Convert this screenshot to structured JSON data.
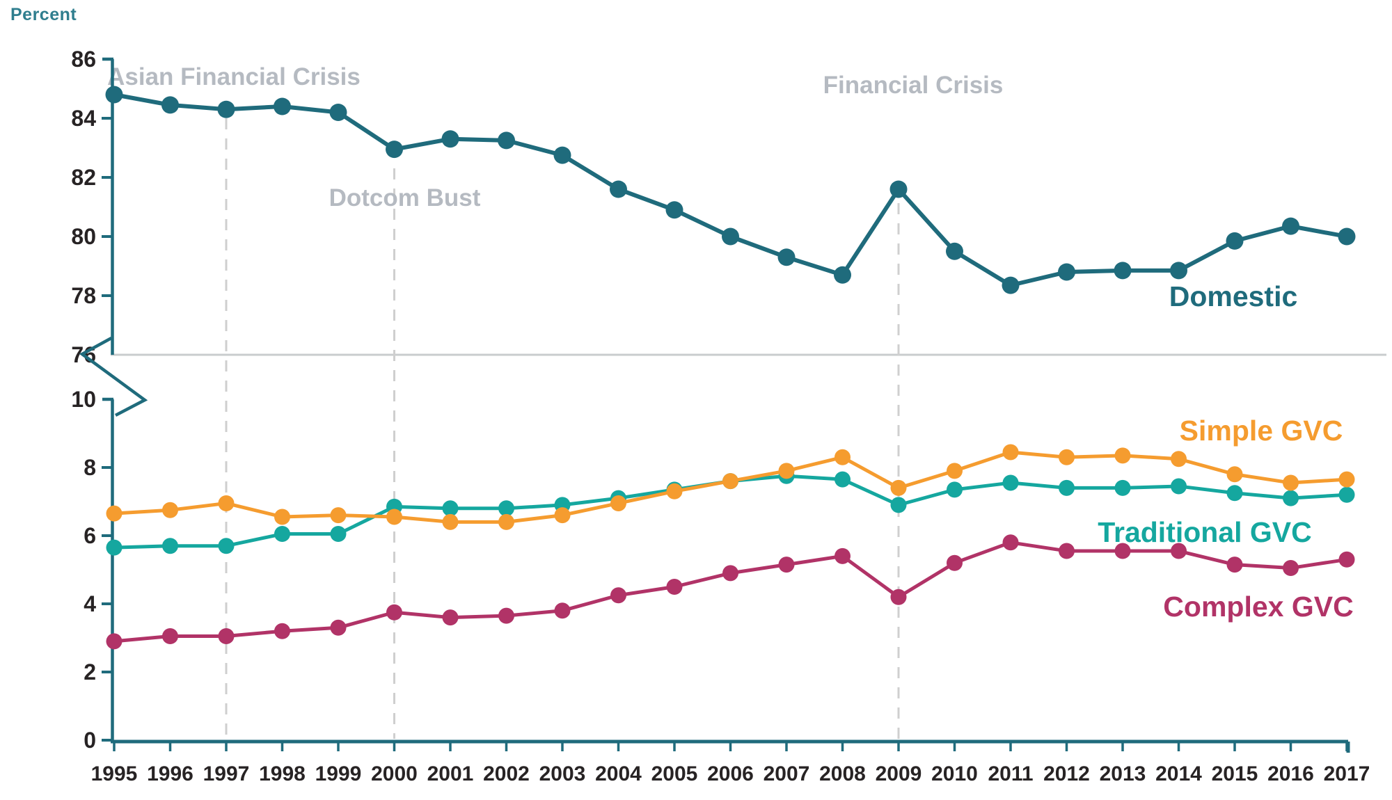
{
  "figure": {
    "unit_label": "Percent",
    "background": "#ffffff",
    "axis_color": "#1F6B7C",
    "tick_text_color": "#272324",
    "annotation_color": "#B5BAC1",
    "dashed_line_color": "#CFCFCF",
    "separator_color": "#C9CCCE"
  },
  "chart_data": {
    "type": "line",
    "title": "",
    "ylabel": "Percent",
    "xlabel": "",
    "grid": false,
    "legend": "inline-series-labels",
    "broken_y_axis": {
      "top_panel_ylim": [
        76,
        86
      ],
      "top_ticks": [
        86,
        84,
        82,
        80,
        78,
        76
      ],
      "bottom_panel_ylim": [
        0,
        10
      ],
      "bottom_ticks": [
        10,
        8,
        6,
        4,
        2,
        0
      ]
    },
    "x": [
      1995,
      1996,
      1997,
      1998,
      1999,
      2000,
      2001,
      2002,
      2003,
      2004,
      2005,
      2006,
      2007,
      2008,
      2009,
      2010,
      2011,
      2012,
      2013,
      2014,
      2015,
      2016,
      2017
    ],
    "annotations": [
      {
        "text": "Asian Financial Crisis",
        "x": 1997
      },
      {
        "text": "Dotcom Bust",
        "x": 2000
      },
      {
        "text": "Financial Crisis",
        "x": 2009
      }
    ],
    "series": [
      {
        "name": "Domestic",
        "panel": "top",
        "color": "#1F6B7C",
        "values": [
          84.8,
          84.45,
          84.3,
          84.4,
          84.2,
          82.95,
          83.3,
          83.25,
          82.75,
          81.6,
          80.9,
          80.0,
          79.3,
          78.7,
          81.6,
          79.5,
          78.35,
          78.8,
          78.85,
          78.85,
          79.85,
          80.35,
          80.0
        ]
      },
      {
        "name": "Simple GVC",
        "panel": "bottom",
        "color": "#F59C2F",
        "values": [
          6.65,
          6.75,
          6.95,
          6.55,
          6.6,
          6.55,
          6.4,
          6.4,
          6.6,
          6.95,
          7.3,
          7.6,
          7.9,
          8.3,
          7.4,
          7.9,
          8.45,
          8.3,
          8.35,
          8.25,
          7.8,
          7.55,
          7.65
        ]
      },
      {
        "name": "Traditional GVC",
        "panel": "bottom",
        "color": "#15A79F",
        "values": [
          5.65,
          5.7,
          5.7,
          6.05,
          6.05,
          6.85,
          6.8,
          6.8,
          6.9,
          7.1,
          7.35,
          7.6,
          7.75,
          7.65,
          6.9,
          7.35,
          7.55,
          7.4,
          7.4,
          7.45,
          7.25,
          7.1,
          7.2
        ]
      },
      {
        "name": "Complex GVC",
        "panel": "bottom",
        "color": "#B13367",
        "values": [
          2.9,
          3.05,
          3.05,
          3.2,
          3.3,
          3.75,
          3.6,
          3.65,
          3.8,
          4.25,
          4.5,
          4.9,
          5.15,
          5.4,
          4.2,
          5.2,
          5.8,
          5.55,
          5.55,
          5.55,
          5.15,
          5.05,
          5.3
        ]
      }
    ]
  }
}
